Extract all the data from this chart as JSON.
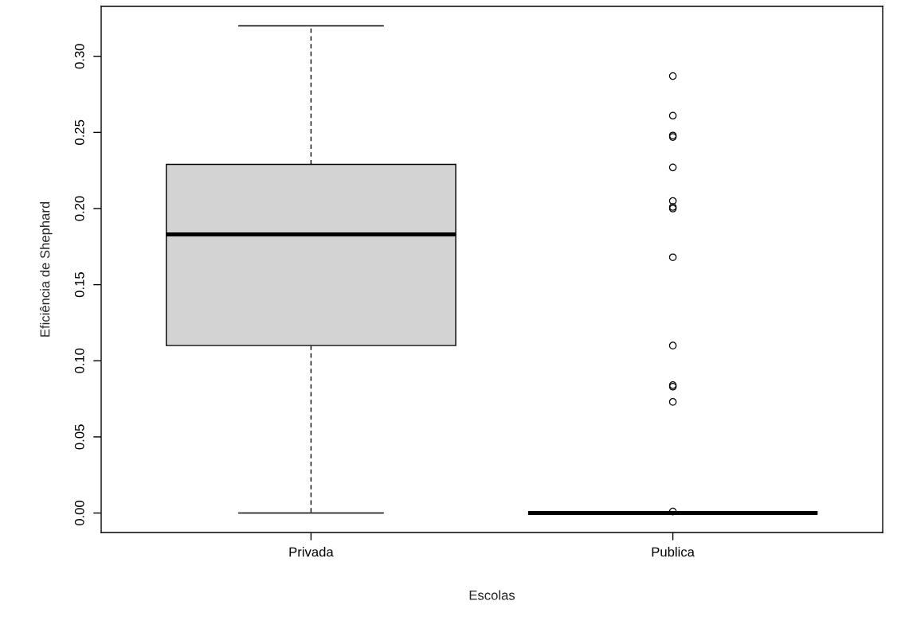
{
  "chart_data": {
    "type": "box",
    "xlabel": "Escolas",
    "ylabel": "Eficiência de Shephard",
    "categories": [
      "Privada",
      "Publica"
    ],
    "boxes": [
      {
        "low": 0,
        "q1": 0.11,
        "median": 0.183,
        "q3": 0.229,
        "high": 0.32
      },
      {
        "low": 0,
        "q1": 0,
        "median": 0,
        "q3": 0,
        "high": 0,
        "outliers": [
          0.287,
          0.261,
          0.248,
          0.247,
          0.227,
          0.205,
          0.201,
          0.2,
          0.168,
          0.11,
          0.084,
          0.083,
          0.073,
          0.001
        ]
      }
    ],
    "colors": [
      "#d3d3d3",
      "#000000"
    ],
    "ylim": [
      -0.0128,
      0.3328
    ],
    "yticks": [
      {
        "value": 0,
        "label": "0.00"
      },
      {
        "value": 0.05,
        "label": "0.05"
      },
      {
        "value": 0.1,
        "label": "0.10"
      },
      {
        "value": 0.15,
        "label": "0.15"
      },
      {
        "value": 0.2,
        "label": "0.20"
      },
      {
        "value": 0.25,
        "label": "0.25"
      },
      {
        "value": 0.3,
        "label": "0.30"
      }
    ],
    "marker": "circle",
    "line_style": "dashed"
  }
}
